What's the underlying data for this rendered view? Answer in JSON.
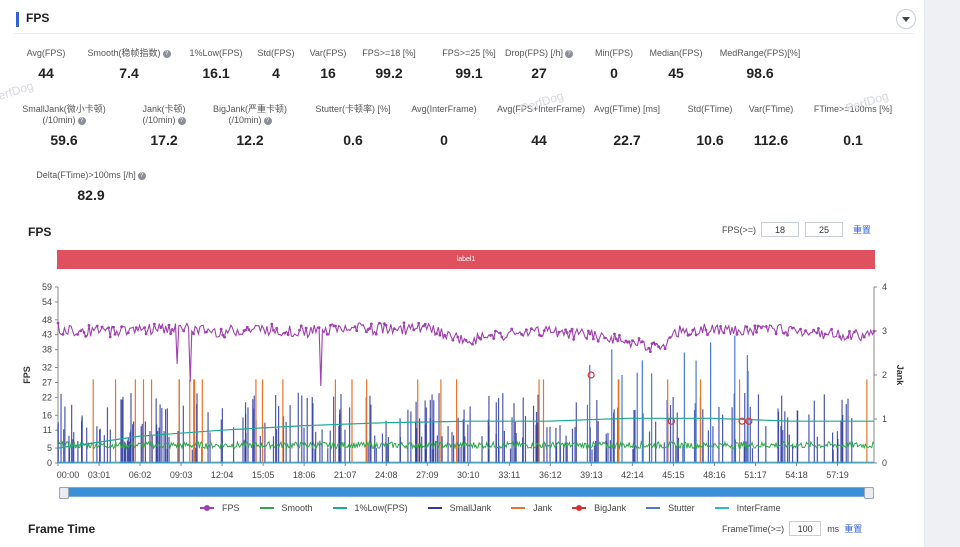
{
  "header": {
    "title": "FPS"
  },
  "metrics_row1": [
    {
      "label": "Avg(FPS)",
      "value": "44",
      "help": false
    },
    {
      "label": "Smooth(稳帧指数)",
      "value": "7.4",
      "help": true
    },
    {
      "label": "1%Low(FPS)",
      "value": "16.1",
      "help": false
    },
    {
      "label": "Std(FPS)",
      "value": "4",
      "help": false
    },
    {
      "label": "Var(FPS)",
      "value": "16",
      "help": false
    },
    {
      "label": "FPS>=18 [%]",
      "value": "99.2",
      "help": false
    },
    {
      "label": "FPS>=25 [%]",
      "value": "99.1",
      "help": false
    },
    {
      "label": "Drop(FPS) [/h]",
      "value": "27",
      "help": true
    },
    {
      "label": "Min(FPS)",
      "value": "0",
      "help": false
    },
    {
      "label": "Median(FPS)",
      "value": "45",
      "help": false
    },
    {
      "label": "MedRange(FPS)[%]",
      "value": "98.6",
      "help": false
    }
  ],
  "metrics_row2": [
    {
      "label": "SmallJank(微小卡顿)",
      "label2": "(/10min)",
      "value": "59.6",
      "help": true
    },
    {
      "label": "Jank(卡顿)",
      "label2": "(/10min)",
      "value": "17.2",
      "help": true
    },
    {
      "label": "BigJank(严重卡顿)",
      "label2": "(/10min)",
      "value": "12.2",
      "help": true
    },
    {
      "label": "Stutter(卡顿率) [%]",
      "label2": "",
      "value": "0.6",
      "help": false
    },
    {
      "label": "Avg(InterFrame)",
      "label2": "",
      "value": "0",
      "help": false
    },
    {
      "label": "Avg(FPS+InterFrame)",
      "label2": "",
      "value": "44",
      "help": false
    },
    {
      "label": "Avg(FTime) [ms]",
      "label2": "",
      "value": "22.7",
      "help": false
    },
    {
      "label": "Std(FTime)",
      "label2": "",
      "value": "10.6",
      "help": false
    },
    {
      "label": "Var(FTime)",
      "label2": "",
      "value": "112.6",
      "help": false
    },
    {
      "label": "FTime>=100ms [%]",
      "label2": "",
      "value": "0.1",
      "help": false
    }
  ],
  "metrics_row3": [
    {
      "label": "Delta(FTime)>100ms [/h]",
      "value": "82.9",
      "help": true
    }
  ],
  "fps_chart": {
    "title": "FPS",
    "threshold_label": "FPS(>=)",
    "threshold_1": "18",
    "threshold_2": "25",
    "reset_label": "重置",
    "band_label": "label1"
  },
  "frametime": {
    "title": "Frame Time",
    "threshold_label": "FrameTime(>=)",
    "value": "100",
    "unit": "ms",
    "reset_label": "重置"
  },
  "watermark": "PerfDog",
  "colors": {
    "fps": "#a040b0",
    "smooth": "#2ea84a",
    "low1": "#1ea898",
    "smalljank": "#2e3aa0",
    "jank": "#e8742a",
    "bigjank": "#d83030",
    "stutter": "#4a78d0",
    "interframe": "#30b8d8"
  },
  "chart_data": {
    "type": "line",
    "xlabel": "",
    "ylabel": "FPS",
    "y2label": "Jank",
    "x_ticks": [
      "00:00",
      "03:01",
      "06:02",
      "09:03",
      "12:04",
      "15:05",
      "18:06",
      "21:07",
      "24:08",
      "27:09",
      "30:10",
      "33:11",
      "36:12",
      "39:13",
      "42:14",
      "45:15",
      "48:16",
      "51:17",
      "54:18",
      "57:19"
    ],
    "y_ticks": [
      0,
      5,
      11,
      16,
      22,
      27,
      32,
      38,
      43,
      48,
      54,
      59
    ],
    "y2_ticks": [
      0,
      1,
      2,
      3,
      4
    ],
    "ylim": [
      0,
      59
    ],
    "y2lim": [
      0,
      4
    ],
    "x_range_minutes": [
      0,
      60
    ],
    "legend_position": "bottom",
    "legend": [
      "FPS",
      "Smooth",
      "1%Low(FPS)",
      "SmallJank",
      "Jank",
      "BigJank",
      "Stutter",
      "InterFrame"
    ],
    "series": [
      {
        "name": "FPS",
        "points": [
          [
            0,
            45
          ],
          [
            3,
            44
          ],
          [
            6,
            45
          ],
          [
            9,
            45
          ],
          [
            12,
            44
          ],
          [
            15,
            45
          ],
          [
            18,
            44
          ],
          [
            21,
            45
          ],
          [
            24,
            45
          ],
          [
            27,
            45
          ],
          [
            30,
            41
          ],
          [
            33,
            43
          ],
          [
            36,
            44
          ],
          [
            39,
            43
          ],
          [
            42,
            41
          ],
          [
            44.5,
            38
          ],
          [
            45.5,
            44
          ],
          [
            48,
            45
          ],
          [
            50,
            44
          ],
          [
            53,
            45
          ],
          [
            55,
            44
          ],
          [
            57,
            43
          ],
          [
            60,
            43
          ]
        ]
      },
      {
        "name": "Smooth",
        "points": [
          [
            0,
            6
          ],
          [
            6,
            6
          ],
          [
            12,
            6
          ],
          [
            18,
            6
          ],
          [
            24,
            6
          ],
          [
            30,
            6
          ],
          [
            36,
            6
          ],
          [
            42,
            6
          ],
          [
            48,
            6
          ],
          [
            54,
            6
          ],
          [
            60,
            6
          ]
        ]
      },
      {
        "name": "1%Low(FPS)",
        "points": [
          [
            0,
            5
          ],
          [
            6,
            9
          ],
          [
            12,
            11
          ],
          [
            18,
            12.5
          ],
          [
            24,
            13.5
          ],
          [
            30,
            14
          ],
          [
            36,
            14
          ],
          [
            42,
            15
          ],
          [
            48,
            15
          ],
          [
            54,
            14
          ],
          [
            60,
            14
          ]
        ]
      }
    ],
    "annotations": [
      {
        "type": "band",
        "label": "label1",
        "x_range": [
          0,
          60
        ]
      }
    ]
  }
}
